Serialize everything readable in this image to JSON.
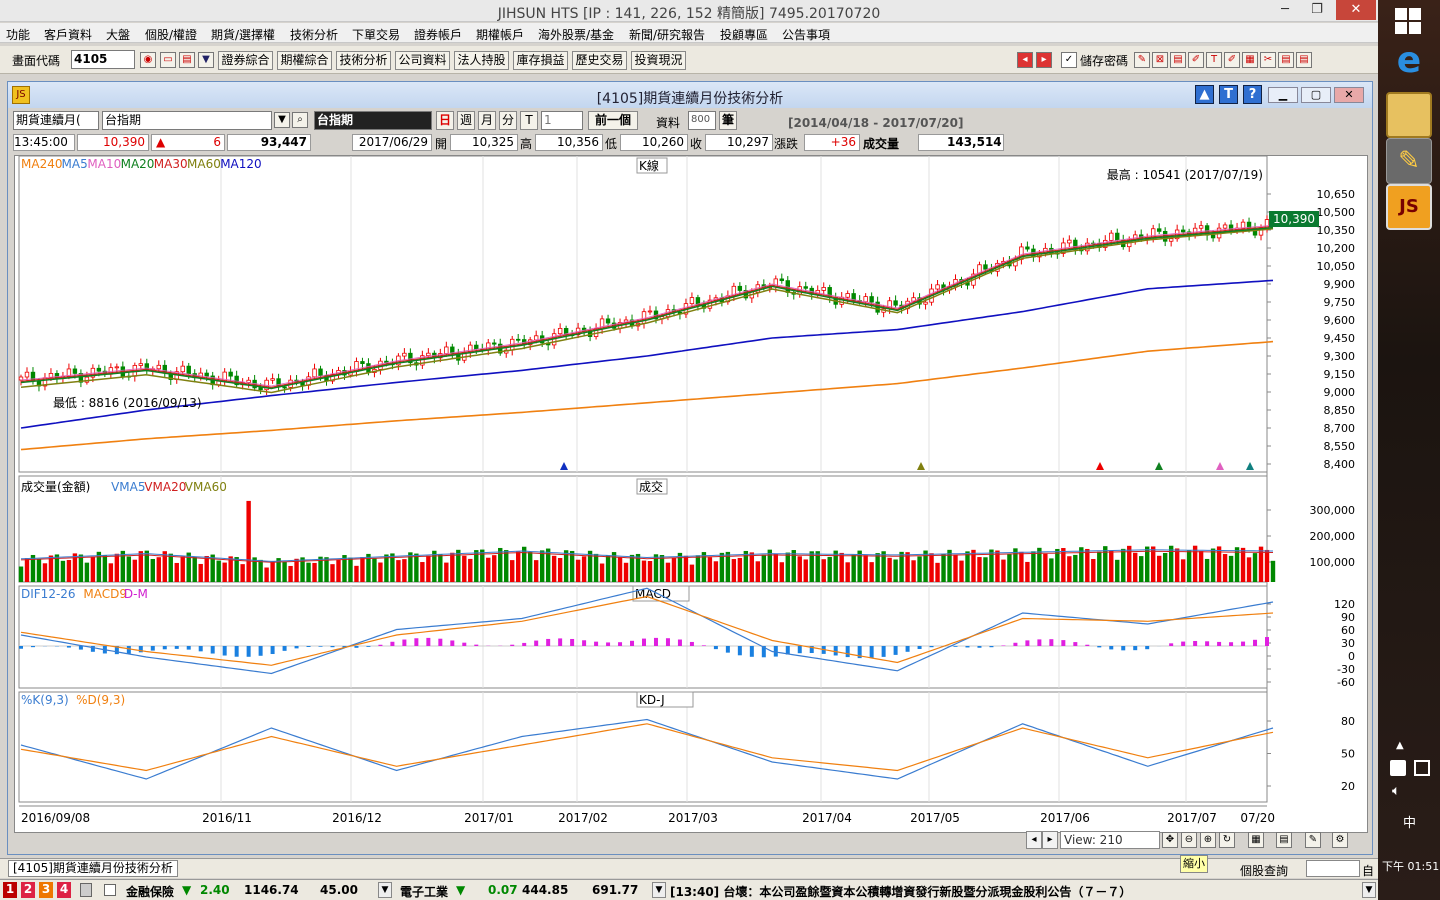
{
  "window": {
    "title": "JIHSUN HTS      [IP : 141, 226, 152 精簡版] 7495.20170720",
    "minimize": "─",
    "restore": "❐",
    "close": "✕"
  },
  "menu": [
    "功能",
    "客戶資料",
    "大盤",
    "個股/權證",
    "期貨/選擇權",
    "技術分析",
    "下單交易",
    "證券帳戶",
    "期權帳戶",
    "海外股票/基金",
    "新聞/研究報告",
    "投顧專區",
    "公告事項"
  ],
  "toolbar": {
    "code_label": "畫面代碼",
    "code_value": "4105",
    "buttons": [
      "證券綜合",
      "期權綜合",
      "技術分析",
      "公司資料",
      "法人持股",
      "庫存損益",
      "歷史交易",
      "投資現況"
    ],
    "save_pwd_label": "儲存密碼",
    "save_pwd_checked": true
  },
  "subwindow": {
    "title": "[4105]期貨連續月份技術分析",
    "help_buttons": [
      "▲",
      "T",
      "?"
    ],
    "controls": [
      "▁",
      "▢",
      "✕"
    ]
  },
  "controls": {
    "type_select": "期貨連續月(",
    "product_input": "台指期",
    "product_name": "台指期",
    "periods": [
      "日",
      "週",
      "月",
      "分",
      "T"
    ],
    "period_value": "1",
    "prev_button": "前一個",
    "data_label": "資料",
    "data_count": "800",
    "unit_label": "筆",
    "date_range": "[2014/04/18 - 2017/07/20]"
  },
  "info": {
    "time": "13:45:00",
    "price": "10,390",
    "change_arrow": "▲",
    "change": "6",
    "volume_total": "93,447",
    "date": "2017/06/29",
    "open_label": "開",
    "open": "10,325",
    "high_label": "高",
    "high": "10,356",
    "low_label": "低",
    "low": "10,260",
    "close_label": "收",
    "close": "10,297",
    "chg_label": "漲跌",
    "chg": "+36",
    "vol_label": "成交量",
    "vol": "143,514"
  },
  "panels": {
    "k": {
      "title": "K線",
      "legend": [
        {
          "name": "MA240",
          "color": "#f08010"
        },
        {
          "name": "MA5",
          "color": "#3a7cd0"
        },
        {
          "name": "MA10",
          "color": "#e060c0"
        },
        {
          "name": "MA20",
          "color": "#108020"
        },
        {
          "name": "MA30",
          "color": "#d02020"
        },
        {
          "name": "MA60",
          "color": "#808010"
        },
        {
          "name": "MA120",
          "color": "#1010c0"
        }
      ],
      "yticks": [
        "10,650",
        "10,500",
        "10,350",
        "10,200",
        "10,050",
        "9,900",
        "9,750",
        "9,600",
        "9,450",
        "9,300",
        "9,150",
        "9,000",
        "8,850",
        "8,700",
        "8,550",
        "8,400"
      ],
      "high_note": "最高 : 10541 (2017/07/19)",
      "low_note": "最低 : 8816 (2016/09/13)",
      "last_price": "10,390"
    },
    "vol": {
      "title": "成交",
      "legend": [
        {
          "name": "成交量(金額)",
          "color": "#000000"
        },
        {
          "name": "VMA5",
          "color": "#3a7cd0"
        },
        {
          "name": "VMA20",
          "color": "#d02020"
        },
        {
          "name": "VMA60",
          "color": "#808010"
        }
      ],
      "yticks": [
        "300,000",
        "200,000",
        "100,000"
      ]
    },
    "macd": {
      "title": "MACD",
      "legend": [
        {
          "name": "DIF12-26",
          "color": "#3a7cd0"
        },
        {
          "name": "MACD9",
          "color": "#f08010"
        },
        {
          "name": "D-M",
          "color": "#d020d0"
        }
      ],
      "yticks": [
        "120",
        "90",
        "60",
        "30",
        "0",
        "-30",
        "-60"
      ]
    },
    "kd": {
      "title": "KD-J",
      "legend": [
        {
          "name": "%K(9,3)",
          "color": "#3a7cd0"
        },
        {
          "name": "%D(9,3)",
          "color": "#f08010"
        }
      ],
      "yticks": [
        "80",
        "50",
        "20"
      ]
    }
  },
  "xaxis": [
    "2016/09/08",
    "2016/11",
    "2016/12",
    "2017/01",
    "2017/02",
    "2017/03",
    "2017/04",
    "2017/05",
    "2017/06",
    "2017/07",
    "07/20"
  ],
  "nav": {
    "view_label": "View: 210",
    "zoom_label": "縮小"
  },
  "tabs": {
    "active": "[4105]期貨連續月份技術分析",
    "query_label": "個股查詢",
    "query_suffix": "自"
  },
  "ticker": {
    "digits": [
      "1",
      "2",
      "3",
      "4"
    ],
    "items": [
      {
        "name": "金融保險",
        "arrow": "▼",
        "chg": "2.40",
        "price": "1146.74",
        "vol": "45.00"
      },
      {
        "name": "電子工業",
        "arrow": "▼",
        "chg": "0.07",
        "price": "444.85",
        "vol": "691.77"
      }
    ],
    "news": "[13:40] 台壞：本公司盈餘暨資本公積轉增資發行新股暨分派現金股利公告（７－７）"
  },
  "clock": {
    "label": "下午 01:51"
  },
  "ime": "中",
  "chart_data": [
    {
      "type": "line",
      "name": "K線",
      "title": "K線",
      "categories": [
        "2016/09/08",
        "2016/11",
        "2016/12",
        "2017/01",
        "2017/02",
        "2017/03",
        "2017/04",
        "2017/05",
        "2017/06",
        "2017/07",
        "07/20"
      ],
      "ylim": [
        8400,
        10650
      ],
      "series": [
        {
          "name": "Close",
          "values": [
            9100,
            9200,
            9050,
            9260,
            9410,
            9620,
            9900,
            9700,
            10150,
            10300,
            10390
          ]
        },
        {
          "name": "MA120",
          "values": [
            8700,
            8850,
            8970,
            9080,
            9180,
            9300,
            9450,
            9520,
            9670,
            9860,
            9930
          ]
        },
        {
          "name": "MA240",
          "values": [
            8520,
            8610,
            8680,
            8760,
            8830,
            8910,
            8990,
            9070,
            9200,
            9340,
            9420
          ]
        }
      ]
    },
    {
      "type": "bar",
      "name": "成交",
      "title": "成交",
      "ylim": [
        0,
        350000
      ],
      "values": [
        90000,
        110000,
        80000,
        100000,
        120000,
        95000,
        110000,
        105000,
        115000,
        125000,
        120000
      ]
    },
    {
      "type": "line",
      "name": "MACD",
      "title": "MACD",
      "ylim": [
        -70,
        130
      ],
      "series": [
        {
          "name": "DIF12-26",
          "values": [
            20,
            -20,
            -50,
            30,
            50,
            105,
            -10,
            -45,
            60,
            40,
            80
          ]
        },
        {
          "name": "MACD9",
          "values": [
            25,
            -10,
            -35,
            20,
            45,
            90,
            10,
            -30,
            50,
            45,
            60
          ]
        }
      ]
    },
    {
      "type": "line",
      "name": "KD-J",
      "title": "KD-J",
      "ylim": [
        0,
        100
      ],
      "series": [
        {
          "name": "%K(9,3)",
          "values": [
            60,
            20,
            80,
            30,
            70,
            90,
            40,
            20,
            85,
            35,
            80
          ]
        },
        {
          "name": "%D(9,3)",
          "values": [
            55,
            30,
            70,
            35,
            60,
            85,
            45,
            30,
            80,
            45,
            75
          ]
        }
      ]
    }
  ]
}
